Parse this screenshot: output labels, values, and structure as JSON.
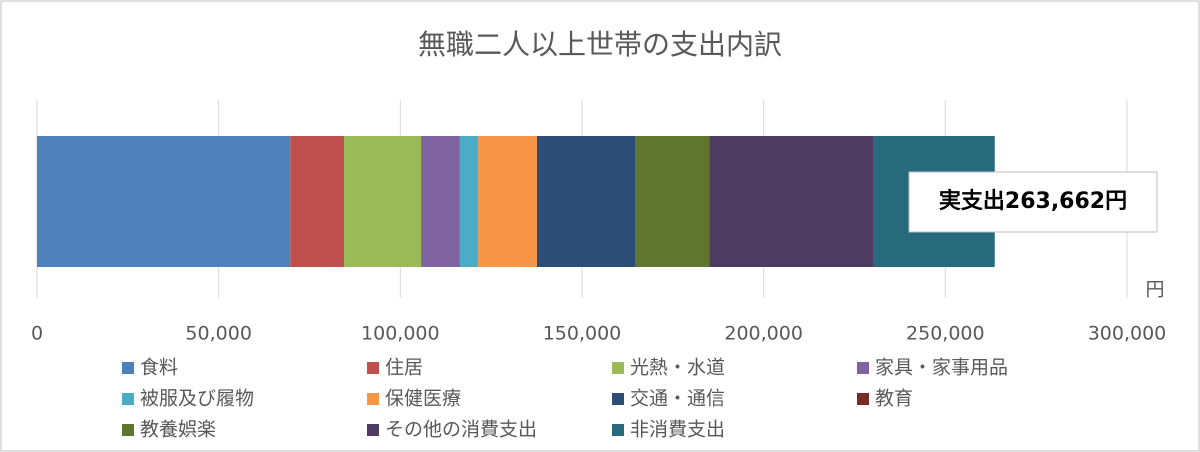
{
  "chart_data": {
    "type": "stacked-bar-horizontal",
    "title": "無職二人以上世帯の支出内訳",
    "x_unit_label": "円",
    "annotation": "実支出263,662円",
    "xlim": [
      0,
      300000
    ],
    "xticks": [
      0,
      {
        "value": 50000,
        "label": "50,000"
      },
      {
        "value": 100000,
        "label": "100,000"
      },
      {
        "value": 150000,
        "label": "150,000"
      },
      {
        "value": 200000,
        "label": "200,000"
      },
      {
        "value": 250000,
        "label": "250,000"
      },
      {
        "value": 300000,
        "label": "300,000"
      }
    ],
    "grid": true,
    "series": [
      {
        "name": "食料",
        "color": "#4f81bd",
        "values": [
          69700
        ]
      },
      {
        "name": "住居",
        "color": "#c0504d",
        "values": [
          14800
        ]
      },
      {
        "name": "光熱・水道",
        "color": "#9bbb59",
        "values": [
          21200
        ]
      },
      {
        "name": "家具・家事用品",
        "color": "#8064a2",
        "values": [
          10700
        ]
      },
      {
        "name": "被服及び履物",
        "color": "#4bacc6",
        "values": [
          5000
        ]
      },
      {
        "name": "保健医療",
        "color": "#f79646",
        "values": [
          16200
        ]
      },
      {
        "name": "交通・通信",
        "color": "#2c4d75",
        "values": [
          27000
        ]
      },
      {
        "name": "教育",
        "color": "#772c2a",
        "values": [
          0
        ]
      },
      {
        "name": "教養娯楽",
        "color": "#5f7530",
        "values": [
          20400
        ]
      },
      {
        "name": "その他の消費支出",
        "color": "#4d3b62",
        "values": [
          45100
        ]
      },
      {
        "name": "非消費支出",
        "color": "#276a7c",
        "values": [
          33500
        ]
      }
    ]
  }
}
